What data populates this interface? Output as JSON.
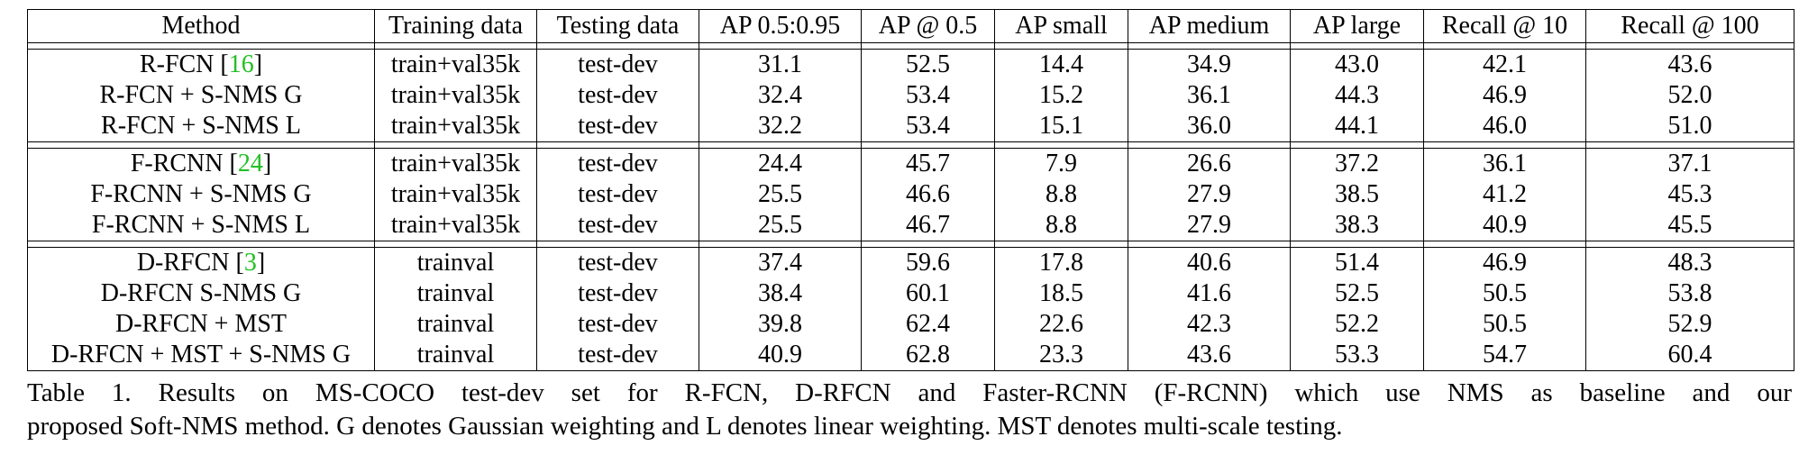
{
  "table": {
    "headers": [
      "Method",
      "Training data",
      "Testing data",
      "AP 0.5:0.95",
      "AP @ 0.5",
      "AP small",
      "AP medium",
      "AP large",
      "Recall @ 10",
      "Recall @ 100"
    ],
    "groups": [
      {
        "rows": [
          {
            "method": "R-FCN ",
            "cite": "16",
            "cite_close": "]",
            "cite_open": "[",
            "training": "train+val35k",
            "testing": "test-dev",
            "values": [
              "31.1",
              "52.5",
              "14.4",
              "34.9",
              "43.0",
              "42.1",
              "43.6"
            ],
            "bold": [
              false,
              false,
              false,
              false,
              false,
              false,
              false
            ]
          },
          {
            "method": "R-FCN + S-NMS G",
            "training": "train+val35k",
            "testing": "test-dev",
            "values": [
              "32.4",
              "53.4",
              "15.2",
              "36.1",
              "44.3",
              "46.9",
              "52.0"
            ],
            "bold": [
              true,
              true,
              true,
              true,
              true,
              true,
              true
            ]
          },
          {
            "method": "R-FCN + S-NMS L",
            "training": "train+val35k",
            "testing": "test-dev",
            "values": [
              "32.2",
              "53.4",
              "15.1",
              "36.0",
              "44.1",
              "46.0",
              "51.0"
            ],
            "bold": [
              false,
              true,
              false,
              false,
              false,
              false,
              false
            ]
          }
        ]
      },
      {
        "rows": [
          {
            "method": "F-RCNN ",
            "cite": "24",
            "cite_close": "]",
            "cite_open": "[",
            "training": "train+val35k",
            "testing": "test-dev",
            "values": [
              "24.4",
              "45.7",
              "7.9",
              "26.6",
              "37.2",
              "36.1",
              "37.1"
            ],
            "bold": [
              false,
              false,
              false,
              false,
              false,
              false,
              false
            ]
          },
          {
            "method": "F-RCNN + S-NMS G",
            "training": "train+val35k",
            "testing": "test-dev",
            "values": [
              "25.5",
              "46.6",
              "8.8",
              "27.9",
              "38.5",
              "41.2",
              "45.3"
            ],
            "bold": [
              true,
              false,
              true,
              true,
              true,
              true,
              false
            ]
          },
          {
            "method": "F-RCNN + S-NMS L",
            "training": "train+val35k",
            "testing": "test-dev",
            "values": [
              "25.5",
              "46.7",
              "8.8",
              "27.9",
              "38.3",
              "40.9",
              "45.5"
            ],
            "bold": [
              true,
              true,
              true,
              true,
              false,
              false,
              true
            ]
          }
        ]
      },
      {
        "rows": [
          {
            "method": "D-RFCN ",
            "cite": "3",
            "cite_close": "]",
            "cite_open": "[",
            "training": "trainval",
            "testing": "test-dev",
            "values": [
              "37.4",
              "59.6",
              "17.8",
              "40.6",
              "51.4",
              "46.9",
              "48.3"
            ],
            "bold": [
              false,
              false,
              false,
              false,
              false,
              false,
              false
            ]
          },
          {
            "method": "D-RFCN S-NMS G",
            "training": "trainval",
            "testing": "test-dev",
            "values": [
              "38.4",
              "60.1",
              "18.5",
              "41.6",
              "52.5",
              "50.5",
              "53.8"
            ],
            "bold": [
              true,
              true,
              true,
              true,
              true,
              true,
              true
            ]
          },
          {
            "method": "D-RFCN + MST",
            "training": "trainval",
            "testing": "test-dev",
            "values": [
              "39.8",
              "62.4",
              "22.6",
              "42.3",
              "52.2",
              "50.5",
              "52.9"
            ],
            "bold": [
              false,
              false,
              false,
              false,
              false,
              false,
              false
            ]
          },
          {
            "method": "D-RFCN + MST + S-NMS G",
            "training": "trainval",
            "testing": "test-dev",
            "values": [
              "40.9",
              "62.8",
              "23.3",
              "43.6",
              "53.3",
              "54.7",
              "60.4"
            ],
            "bold": [
              true,
              true,
              true,
              true,
              true,
              true,
              true
            ]
          }
        ]
      }
    ]
  },
  "caption": {
    "line1": "Table 1. Results on MS-COCO test-dev set for R-FCN, D-RFCN and Faster-RCNN (F-RCNN) which use NMS as baseline and our",
    "line2": "proposed Soft-NMS method. G denotes Gaussian weighting and L denotes linear weighting. MST denotes multi-scale testing."
  },
  "colors": {
    "citation": "#22c022",
    "text": "#000000"
  }
}
